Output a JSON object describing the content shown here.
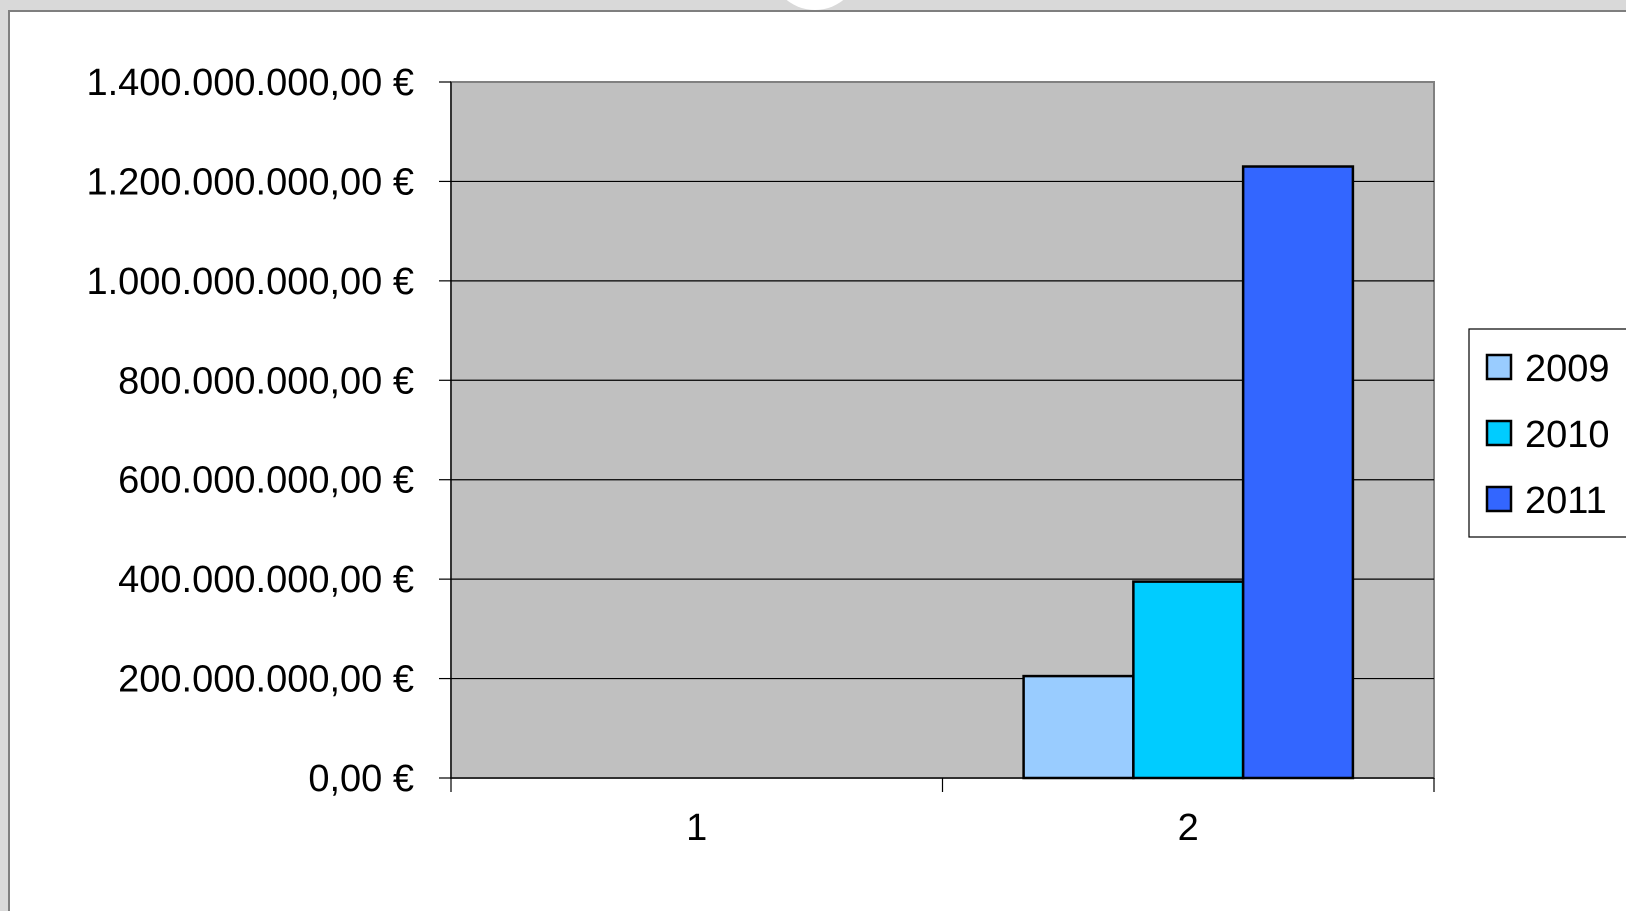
{
  "chart_data": {
    "type": "bar",
    "categories": [
      "1",
      "2"
    ],
    "series": [
      {
        "name": "2009",
        "color": "#99ccff",
        "values": [
          0,
          205000000
        ]
      },
      {
        "name": "2010",
        "color": "#00ccff",
        "values": [
          0,
          395000000
        ]
      },
      {
        "name": "2011",
        "color": "#3366ff",
        "values": [
          0,
          1230000000
        ]
      }
    ],
    "ylim": [
      0,
      1400000000
    ],
    "yticks": [
      {
        "value": 0,
        "label": "0,00 €"
      },
      {
        "value": 200000000,
        "label": "200.000.000,00 €"
      },
      {
        "value": 400000000,
        "label": "400.000.000,00 €"
      },
      {
        "value": 600000000,
        "label": "600.000.000,00 €"
      },
      {
        "value": 800000000,
        "label": "800.000.000,00 €"
      },
      {
        "value": 1000000000,
        "label": "1.000.000.000,00 €"
      },
      {
        "value": 1200000000,
        "label": "1.200.000.000,00 €"
      },
      {
        "value": 1400000000,
        "label": "1.400.000.000,00 €"
      }
    ],
    "title": "",
    "xlabel": "",
    "ylabel": "",
    "grid": true,
    "plot_background": "#c0c0c0",
    "legend_position": "right"
  }
}
